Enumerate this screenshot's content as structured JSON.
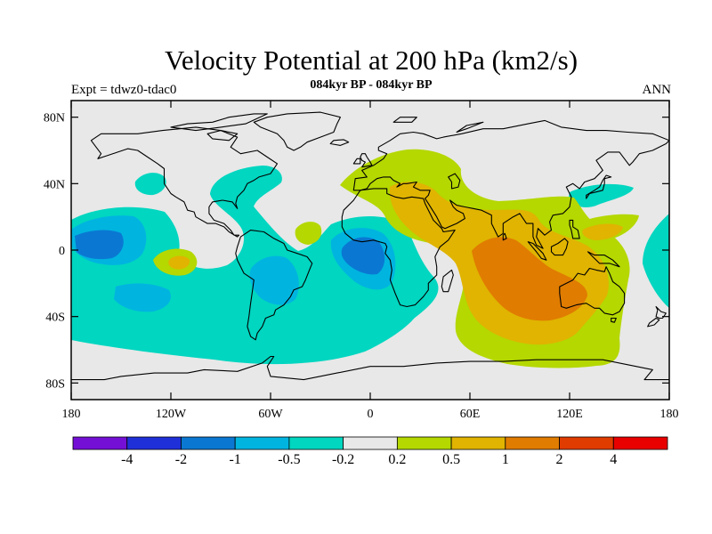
{
  "title": "Velocity Potential at 200 hPa (km2/s)",
  "subtitle": "084kyr BP - 084kyr BP",
  "expt_label": "Expt = tdwz0-tdac0",
  "season": "ANN",
  "map": {
    "projection": "cylindrical-equidistant",
    "lon_range": [
      -180,
      180
    ],
    "lat_range": [
      -90,
      90
    ],
    "background_color": "#e8e8e8",
    "lat_ticks": [
      {
        "value": 80,
        "label": "80N"
      },
      {
        "value": 40,
        "label": "40N"
      },
      {
        "value": 0,
        "label": "0"
      },
      {
        "value": -40,
        "label": "40S"
      },
      {
        "value": -80,
        "label": "80S"
      }
    ],
    "lon_ticks": [
      {
        "value": -180,
        "label": "180"
      },
      {
        "value": -120,
        "label": "120W"
      },
      {
        "value": -60,
        "label": "60W"
      },
      {
        "value": 0,
        "label": "0"
      },
      {
        "value": 60,
        "label": "60E"
      },
      {
        "value": 120,
        "label": "120E"
      },
      {
        "value": 180,
        "label": "180"
      }
    ]
  },
  "colorbar": {
    "boundaries": [
      "-4",
      "-2",
      "-1",
      "-0.5",
      "-0.2",
      "0.2",
      "0.5",
      "1",
      "2",
      "4"
    ],
    "colors": [
      "#7410d6",
      "#2030d8",
      "#0a78d2",
      "#00b4e0",
      "#00d6c0",
      "#e8e8e8",
      "#b4d800",
      "#e0b400",
      "#e07c00",
      "#e03c00",
      "#e80000"
    ]
  }
}
